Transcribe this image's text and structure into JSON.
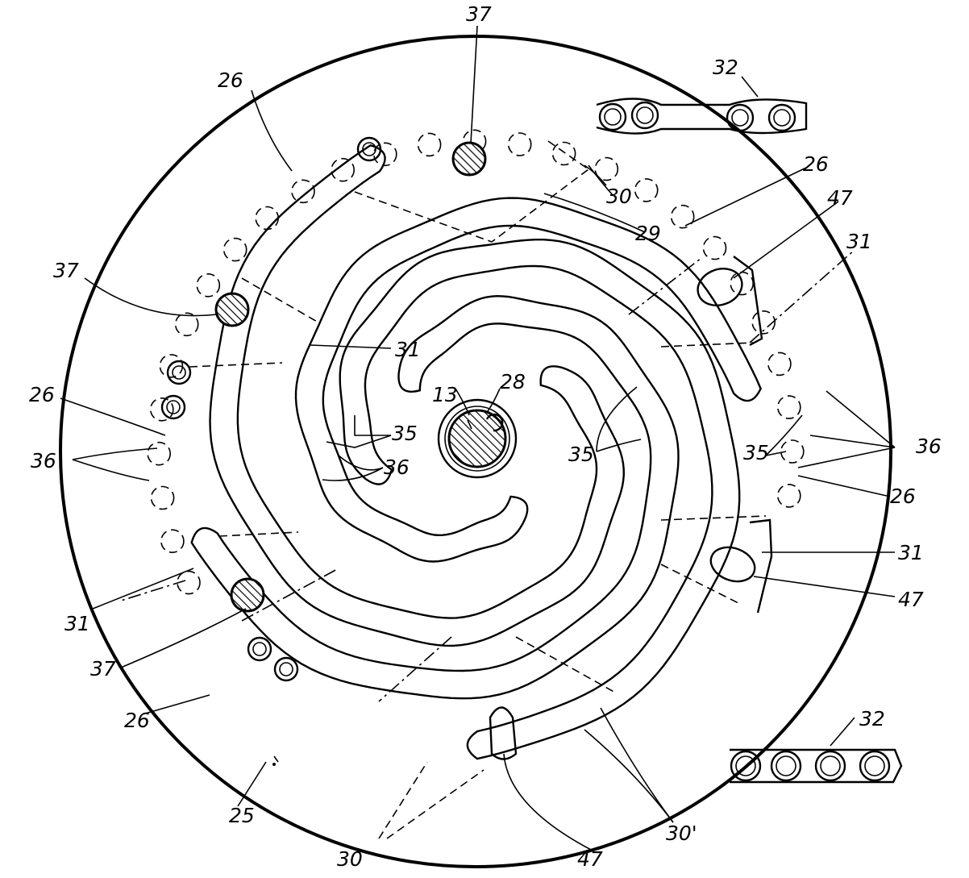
{
  "labels": {
    "l37_top": "37",
    "l32_top": "32",
    "l26_topleft": "26",
    "l26_right": "26",
    "l47_right": "47",
    "l31_right": "31",
    "l30_top": "30",
    "l29": "29",
    "l37_left": "37",
    "l31_center": "31",
    "l13": "13",
    "l28": "28",
    "l26_left": "26",
    "l36_left": "36",
    "l35_center": "35",
    "l36_center": "36",
    "l35_mid": "35",
    "l35_right": "35",
    "l36_right": "36",
    "l26_right2": "26",
    "l31_right2": "31",
    "l47_right2": "47",
    "l31_left": "31",
    "l37_bottomleft": "37",
    "l26_bottomleft": "26",
    "l25": "25",
    "l32_bottom": "32",
    "l30_bottom": "30",
    "l47_bottom": "47",
    "l30p": "30'"
  },
  "colors": {
    "ink": "#000000",
    "paper": "#ffffff"
  }
}
